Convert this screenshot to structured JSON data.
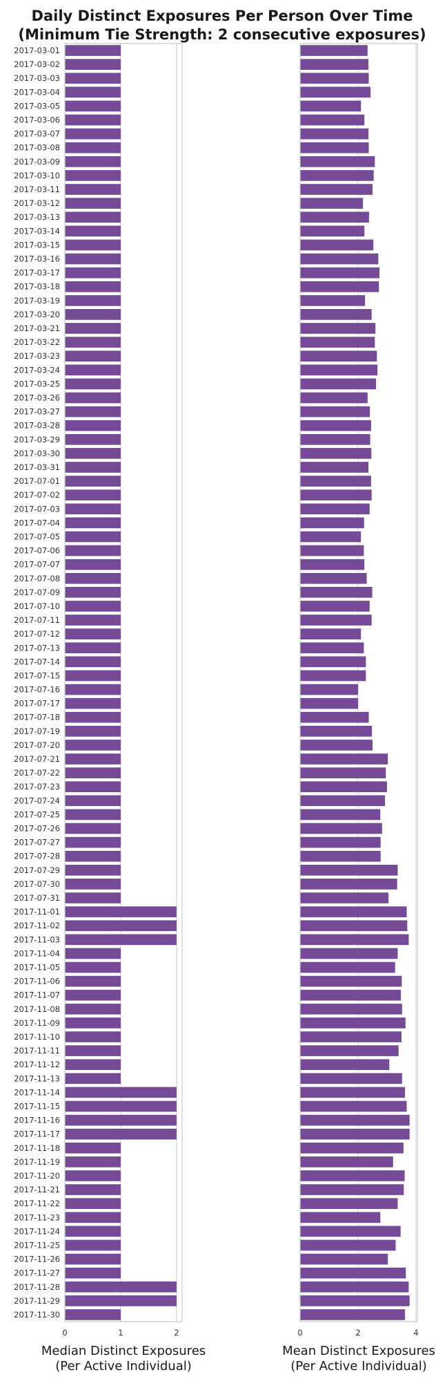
{
  "chart_data": {
    "type": "bar",
    "orientation": "horizontal",
    "title": "Daily Distinct Exposures Per Person Over Time",
    "subtitle": "(Minimum Tie Strength: 2 consecutive exposures)",
    "bar_color": "#754a96",
    "grid": "vertical gridlines",
    "categories": [
      "2017-03-01",
      "2017-03-02",
      "2017-03-03",
      "2017-03-04",
      "2017-03-05",
      "2017-03-06",
      "2017-03-07",
      "2017-03-08",
      "2017-03-09",
      "2017-03-10",
      "2017-03-11",
      "2017-03-12",
      "2017-03-13",
      "2017-03-14",
      "2017-03-15",
      "2017-03-16",
      "2017-03-17",
      "2017-03-18",
      "2017-03-19",
      "2017-03-20",
      "2017-03-21",
      "2017-03-22",
      "2017-03-23",
      "2017-03-24",
      "2017-03-25",
      "2017-03-26",
      "2017-03-27",
      "2017-03-28",
      "2017-03-29",
      "2017-03-30",
      "2017-03-31",
      "2017-07-01",
      "2017-07-02",
      "2017-07-03",
      "2017-07-04",
      "2017-07-05",
      "2017-07-06",
      "2017-07-07",
      "2017-07-08",
      "2017-07-09",
      "2017-07-10",
      "2017-07-11",
      "2017-07-12",
      "2017-07-13",
      "2017-07-14",
      "2017-07-15",
      "2017-07-16",
      "2017-07-17",
      "2017-07-18",
      "2017-07-19",
      "2017-07-20",
      "2017-07-21",
      "2017-07-22",
      "2017-07-23",
      "2017-07-24",
      "2017-07-25",
      "2017-07-26",
      "2017-07-27",
      "2017-07-28",
      "2017-07-29",
      "2017-07-30",
      "2017-07-31",
      "2017-11-01",
      "2017-11-02",
      "2017-11-03",
      "2017-11-04",
      "2017-11-05",
      "2017-11-06",
      "2017-11-07",
      "2017-11-08",
      "2017-11-09",
      "2017-11-10",
      "2017-11-11",
      "2017-11-12",
      "2017-11-13",
      "2017-11-14",
      "2017-11-15",
      "2017-11-16",
      "2017-11-17",
      "2017-11-18",
      "2017-11-19",
      "2017-11-20",
      "2017-11-21",
      "2017-11-22",
      "2017-11-23",
      "2017-11-24",
      "2017-11-25",
      "2017-11-26",
      "2017-11-27",
      "2017-11-28",
      "2017-11-29",
      "2017-11-30"
    ],
    "panels": [
      {
        "xlabel": [
          "Median Distinct Exposures",
          "(Per Active Individual)"
        ],
        "xlim": [
          0,
          2.1
        ],
        "xticks": [
          0,
          1,
          2
        ],
        "values": [
          1,
          1,
          1,
          1,
          1,
          1,
          1,
          1,
          1,
          1,
          1,
          1,
          1,
          1,
          1,
          1,
          1,
          1,
          1,
          1,
          1,
          1,
          1,
          1,
          1,
          1,
          1,
          1,
          1,
          1,
          1,
          1,
          1,
          1,
          1,
          1,
          1,
          1,
          1,
          1,
          1,
          1,
          1,
          1,
          1,
          1,
          1,
          1,
          1,
          1,
          1,
          1,
          1,
          1,
          1,
          1,
          1,
          1,
          1,
          1,
          1,
          1,
          2,
          2,
          2,
          1,
          1,
          1,
          1,
          1,
          1,
          1,
          1,
          1,
          1,
          2,
          2,
          2,
          2,
          1,
          1,
          1,
          1,
          1,
          1,
          1,
          1,
          1,
          1,
          2,
          2,
          1
        ]
      },
      {
        "xlabel": [
          "Mean Distinct Exposures",
          "(Per Active Individual)"
        ],
        "xlim": [
          0,
          4.05
        ],
        "xticks": [
          0,
          2,
          4
        ],
        "values": [
          2.33,
          2.36,
          2.37,
          2.43,
          2.1,
          2.22,
          2.36,
          2.37,
          2.58,
          2.54,
          2.5,
          2.17,
          2.38,
          2.22,
          2.53,
          2.7,
          2.74,
          2.72,
          2.24,
          2.47,
          2.6,
          2.58,
          2.65,
          2.67,
          2.62,
          2.33,
          2.41,
          2.45,
          2.42,
          2.46,
          2.36,
          2.45,
          2.47,
          2.4,
          2.21,
          2.1,
          2.2,
          2.22,
          2.3,
          2.49,
          2.4,
          2.47,
          2.1,
          2.2,
          2.27,
          2.27,
          2.0,
          2.0,
          2.37,
          2.48,
          2.5,
          3.03,
          2.96,
          3.0,
          2.93,
          2.77,
          2.83,
          2.78,
          2.78,
          3.37,
          3.35,
          3.05,
          3.68,
          3.7,
          3.75,
          3.37,
          3.28,
          3.51,
          3.48,
          3.52,
          3.64,
          3.5,
          3.4,
          3.08,
          3.52,
          3.62,
          3.68,
          3.78,
          3.78,
          3.57,
          3.21,
          3.61,
          3.58,
          3.37,
          2.77,
          3.47,
          3.3,
          3.03,
          3.65,
          3.75,
          3.78,
          3.62
        ]
      }
    ]
  }
}
